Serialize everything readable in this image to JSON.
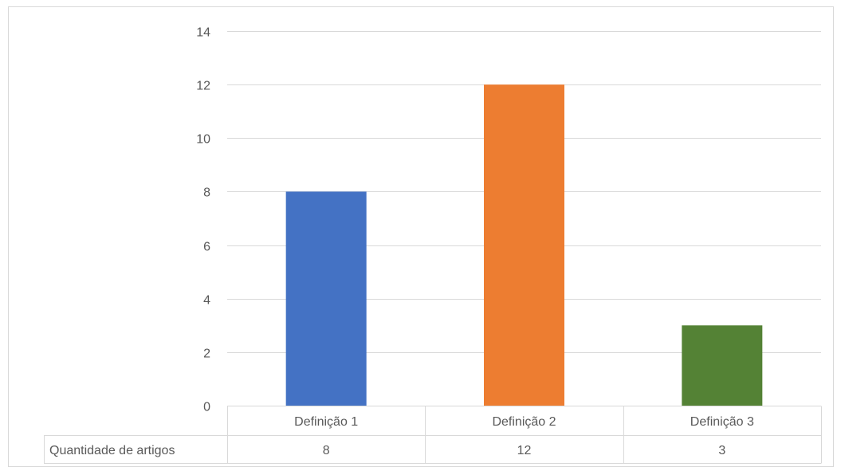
{
  "chart_data": {
    "type": "bar",
    "title": "",
    "xlabel": "",
    "ylabel": "",
    "categories": [
      "Definição 1",
      "Definição 2",
      "Definição 3"
    ],
    "series": [
      {
        "name": "Quantidade de artigos",
        "values": [
          8,
          12,
          3
        ]
      }
    ],
    "bar_colors": [
      "#4472c4",
      "#ed7d31",
      "#548235"
    ],
    "ylim": [
      0,
      14
    ],
    "yticks": [
      0,
      2,
      4,
      6,
      8,
      10,
      12,
      14
    ],
    "grid": true,
    "data_table": true,
    "legend": "none"
  }
}
